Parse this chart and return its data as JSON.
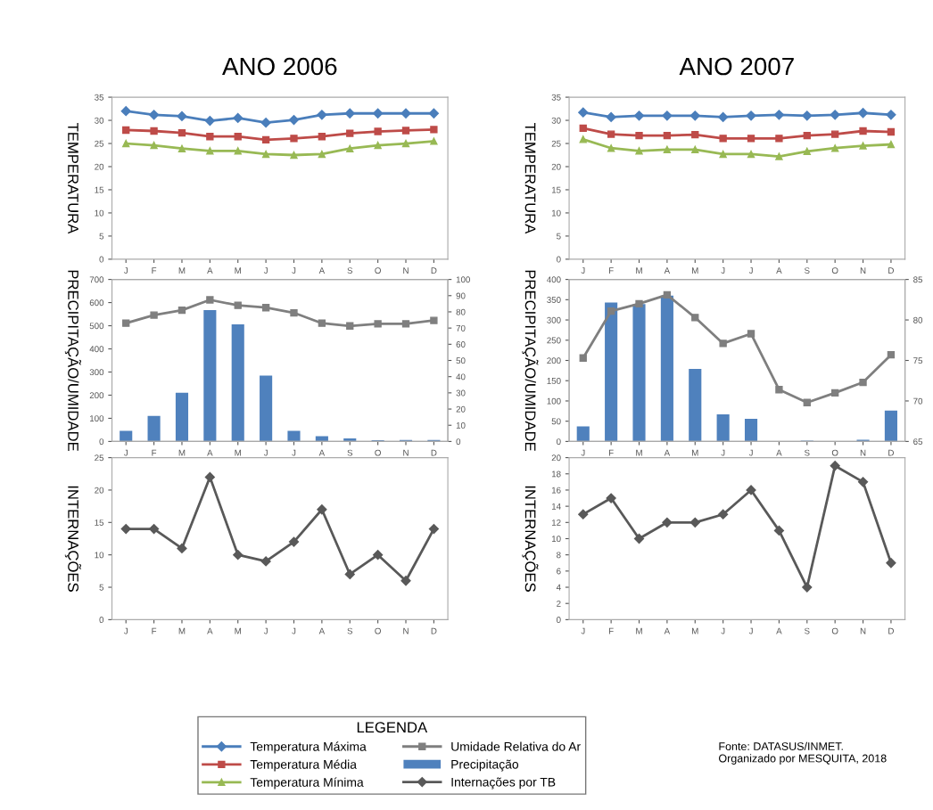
{
  "chart_data": [
    {
      "type": "line",
      "title": "ANO 2006",
      "ylabel": "TEMPERATURA",
      "legend": "bottom",
      "legend_title": "LEGENDA",
      "categories": [
        "J",
        "F",
        "M",
        "A",
        "M",
        "J",
        "J",
        "A",
        "S",
        "O",
        "N",
        "D"
      ],
      "ylim": [
        0,
        35
      ],
      "yticks": [
        0,
        5,
        10,
        15,
        20,
        25,
        30,
        35
      ],
      "series": [
        {
          "name": "Temperatura Máxima",
          "color": "#4a7ebb",
          "marker": "diamond",
          "values": [
            32,
            31.2,
            30.9,
            29.9,
            30.5,
            29.5,
            30.1,
            31.2,
            31.5,
            31.5,
            31.5,
            31.5
          ]
        },
        {
          "name": "Temperatura Média",
          "color": "#be4b48",
          "marker": "square",
          "values": [
            27.9,
            27.7,
            27.3,
            26.5,
            26.5,
            25.8,
            26.1,
            26.5,
            27.2,
            27.6,
            27.8,
            28
          ]
        },
        {
          "name": "Temperatura Mínima",
          "color": "#98b954",
          "marker": "triangle",
          "values": [
            25,
            24.6,
            23.9,
            23.4,
            23.4,
            22.7,
            22.5,
            22.7,
            23.9,
            24.6,
            25,
            25.5
          ]
        }
      ]
    },
    {
      "type": "line",
      "title": "ANO 2007",
      "ylabel": "TEMPERATURA",
      "legend": "bottom",
      "categories": [
        "J",
        "F",
        "M",
        "A",
        "M",
        "J",
        "J",
        "A",
        "S",
        "O",
        "N",
        "D"
      ],
      "ylim": [
        0,
        35
      ],
      "yticks": [
        0,
        5,
        10,
        15,
        20,
        25,
        30,
        35
      ],
      "series": [
        {
          "name": "Temperatura Máxima",
          "color": "#4a7ebb",
          "marker": "diamond",
          "values": [
            31.7,
            30.7,
            31,
            31,
            31,
            30.7,
            31,
            31.2,
            31,
            31.2,
            31.6,
            31.2
          ]
        },
        {
          "name": "Temperatura Média",
          "color": "#be4b48",
          "marker": "square",
          "values": [
            28.3,
            27,
            26.7,
            26.7,
            26.9,
            26.1,
            26.1,
            26.1,
            26.7,
            27,
            27.7,
            27.5
          ]
        },
        {
          "name": "Temperatura Mínima",
          "color": "#98b954",
          "marker": "triangle",
          "values": [
            25.9,
            24,
            23.4,
            23.7,
            23.7,
            22.7,
            22.7,
            22.2,
            23.3,
            24,
            24.5,
            24.8
          ]
        }
      ]
    },
    {
      "type": "bar",
      "ylabel": "PRECIPITAÇÃO/UMIDADE",
      "legend": "bottom",
      "categories": [
        "J",
        "F",
        "M",
        "A",
        "M",
        "J",
        "J",
        "A",
        "S",
        "O",
        "N",
        "D"
      ],
      "ylim": [
        0,
        700
      ],
      "yticks": [
        0,
        100,
        200,
        300,
        400,
        500,
        600,
        700
      ],
      "y2lim": [
        0,
        100
      ],
      "y2ticks": [
        0,
        10,
        20,
        30,
        40,
        50,
        60,
        70,
        80,
        90,
        100
      ],
      "series": [
        {
          "name": "Umidade Relativa do Ar",
          "type": "line",
          "axis": "y2",
          "color": "#7f7f7f",
          "marker": "square",
          "values": [
            73,
            78,
            81,
            87.4,
            84,
            82.6,
            79.4,
            73,
            71.3,
            72.6,
            72.6,
            74.7
          ]
        },
        {
          "name": "Precipitação",
          "type": "bar",
          "color": "#4f81bd",
          "values": [
            46,
            110,
            210,
            568,
            506,
            285,
            46,
            23,
            13,
            5,
            6,
            6
          ]
        }
      ]
    },
    {
      "type": "bar",
      "ylabel": "PRECIPITAÇÃO/UMIDADE",
      "legend": "bottom",
      "categories": [
        "J",
        "F",
        "M",
        "A",
        "M",
        "J",
        "J",
        "A",
        "S",
        "O",
        "N",
        "D"
      ],
      "ylim": [
        0,
        400
      ],
      "yticks": [
        0,
        50,
        100,
        150,
        200,
        250,
        300,
        350,
        400
      ],
      "y2lim": [
        65,
        85
      ],
      "y2ticks": [
        65,
        70,
        75,
        80,
        85
      ],
      "series": [
        {
          "name": "Umidade Relativa do Ar",
          "type": "line",
          "axis": "y2",
          "color": "#7f7f7f",
          "marker": "square",
          "values": [
            75.3,
            81.1,
            82,
            83.1,
            80.3,
            77.1,
            78.3,
            71.4,
            69.8,
            71,
            72.3,
            75.7
          ]
        },
        {
          "name": "Precipitação",
          "type": "bar",
          "color": "#4f81bd",
          "values": [
            37,
            343,
            339,
            360,
            179,
            67,
            56,
            0,
            2,
            0,
            4,
            76
          ]
        }
      ]
    },
    {
      "type": "line",
      "ylabel": "INTERNAÇÕES",
      "legend": "bottom",
      "categories": [
        "J",
        "F",
        "M",
        "A",
        "M",
        "J",
        "J",
        "A",
        "S",
        "O",
        "N",
        "D"
      ],
      "ylim": [
        0,
        25
      ],
      "yticks": [
        0,
        5,
        10,
        15,
        20,
        25
      ],
      "series": [
        {
          "name": "Internações por TB",
          "color": "#595959",
          "marker": "diamond",
          "values": [
            14,
            14,
            11,
            22,
            10,
            9,
            12,
            17,
            7,
            10,
            6,
            14
          ]
        }
      ]
    },
    {
      "type": "line",
      "ylabel": "INTERNAÇÕES",
      "legend": "bottom",
      "categories": [
        "J",
        "F",
        "M",
        "A",
        "M",
        "J",
        "J",
        "A",
        "S",
        "O",
        "N",
        "D"
      ],
      "ylim": [
        0,
        20
      ],
      "yticks": [
        0,
        2,
        4,
        6,
        8,
        10,
        12,
        14,
        16,
        18,
        20
      ],
      "annotations": [
        "Fonte: DATASUS/INMET.\nOrganizado por MESQUITA, 2018"
      ],
      "series": [
        {
          "name": "Internações por TB",
          "color": "#595959",
          "marker": "diamond",
          "values": [
            13,
            15,
            10,
            12,
            12,
            13,
            16,
            11,
            4,
            19,
            17,
            7
          ]
        }
      ]
    }
  ]
}
